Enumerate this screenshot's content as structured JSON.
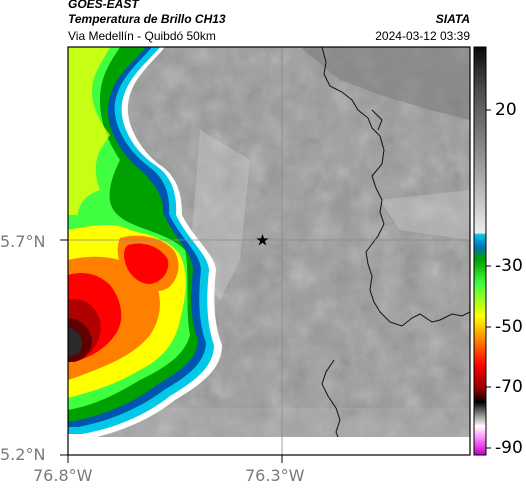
{
  "header": {
    "satellite": "GOES-EAST",
    "product": "Temperatura de Brillo CH13",
    "region": "Via Medellín - Quibdó 50km",
    "brand": "SIATA",
    "datetime": "2024-03-12 03:39"
  },
  "axes": {
    "lat_labels": [
      "5.7°N",
      "5.2°N"
    ],
    "lon_labels": [
      "76.8°W",
      "76.3°W"
    ]
  },
  "colorbar": {
    "tick_labels": [
      "20",
      "-30",
      "-50",
      "-70",
      "-90"
    ],
    "colors": [
      "#0a0a0a",
      "#5a5a5a",
      "#9e9e9e",
      "#dcdcdc",
      "#00c8e6",
      "#0070c0",
      "#00a000",
      "#40ff40",
      "#ffff00",
      "#ff8000",
      "#ff0000",
      "#900000",
      "#000000",
      "#888888",
      "#ff80ff",
      "#c000c0"
    ]
  },
  "map": {
    "marker_icon": "star-icon",
    "colors": {
      "frame": "#000000",
      "gridline": "#8a8a8a",
      "border": "#111111",
      "cold_core": "#2a0000"
    }
  }
}
